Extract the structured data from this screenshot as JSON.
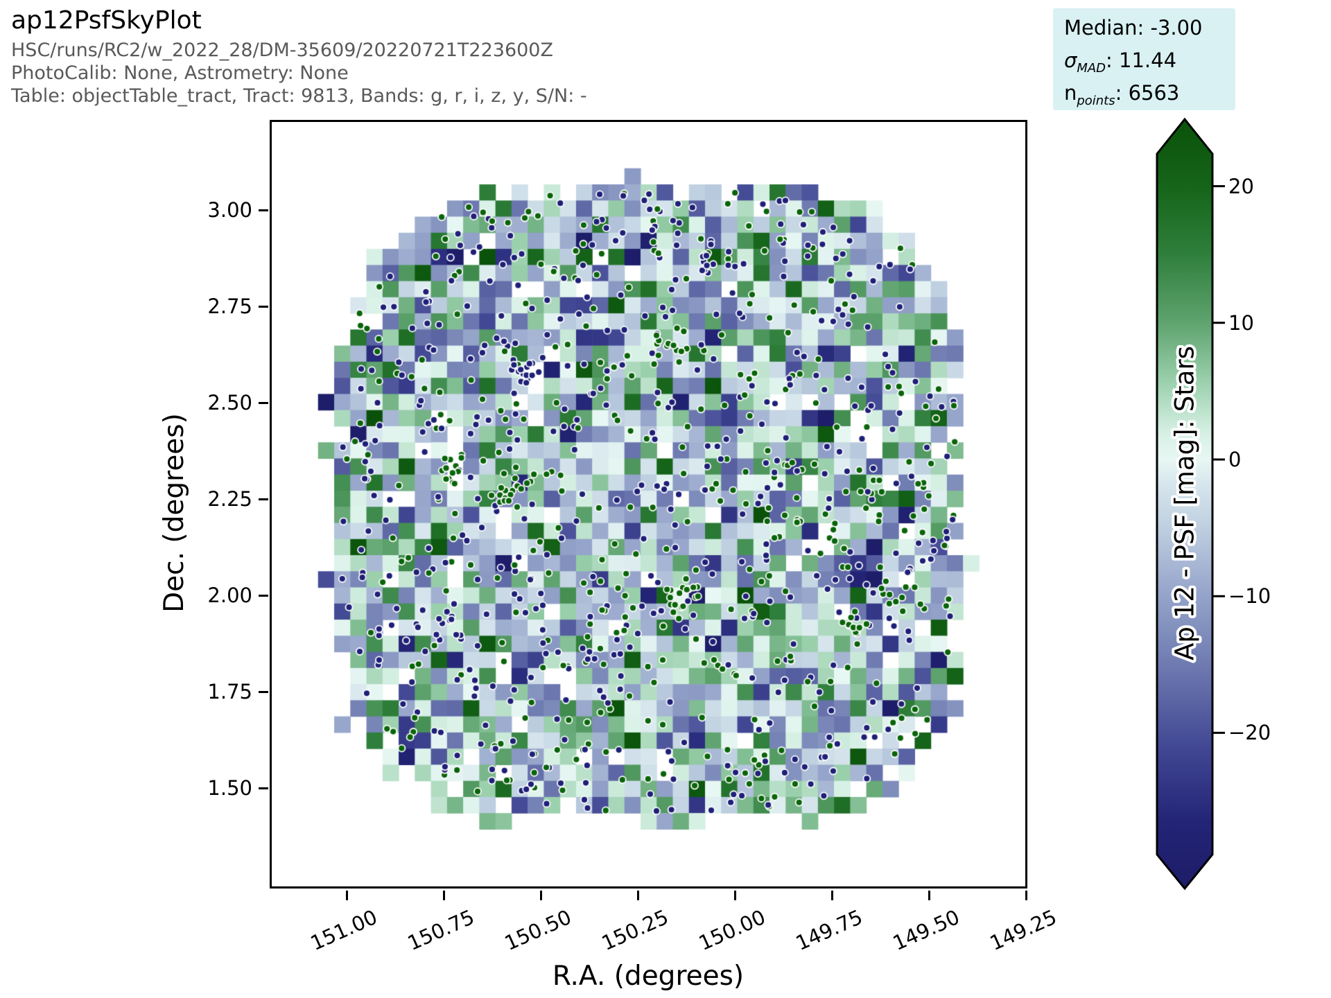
{
  "header": {
    "title": "ap12PsfSkyPlot",
    "lines": [
      "HSC/runs/RC2/w_2022_28/DM-35609/20220721T223600Z",
      "PhotoCalib: None, Astrometry: None",
      "Table: objectTable_tract, Tract: 9813, Bands: g, r, i, z, y, S/N: -"
    ]
  },
  "stats_box": {
    "background": "#d9f1f3",
    "lines": [
      {
        "prefix": "Median",
        "italic": false,
        "sub": "",
        "value": "-3.00"
      },
      {
        "prefix": "σ",
        "italic": true,
        "sub": "MAD",
        "value": "11.44"
      },
      {
        "prefix": "n",
        "italic": false,
        "sub": "points",
        "value": "6563"
      }
    ]
  },
  "plot": {
    "xlabel": "R.A. (degrees)",
    "ylabel": "Dec. (degrees)",
    "x_ticks": [
      {
        "value": 151.0,
        "label": "151.00"
      },
      {
        "value": 150.75,
        "label": "150.75"
      },
      {
        "value": 150.5,
        "label": "150.50"
      },
      {
        "value": 150.25,
        "label": "150.25"
      },
      {
        "value": 150.0,
        "label": "150.00"
      },
      {
        "value": 149.75,
        "label": "149.75"
      },
      {
        "value": 149.5,
        "label": "149.50"
      },
      {
        "value": 149.25,
        "label": "149.25"
      }
    ],
    "y_ticks": [
      {
        "value": 3.0,
        "label": "3.00"
      },
      {
        "value": 2.75,
        "label": "2.75"
      },
      {
        "value": 2.5,
        "label": "2.50"
      },
      {
        "value": 2.25,
        "label": "2.25"
      },
      {
        "value": 2.0,
        "label": "2.00"
      },
      {
        "value": 1.75,
        "label": "1.75"
      },
      {
        "value": 1.5,
        "label": "1.50"
      }
    ]
  },
  "colorbar": {
    "label": "Ap 12 - PSF [mag]: Stars",
    "ticks": [
      {
        "value": 20,
        "label": "20"
      },
      {
        "value": 10,
        "label": "10"
      },
      {
        "value": 0,
        "label": "0"
      },
      {
        "value": -10,
        "label": "−10"
      },
      {
        "value": -20,
        "label": "−20"
      }
    ]
  },
  "chart_data": {
    "type": "heatmap",
    "subtype": "sky-plot binned heatmap with outlier scatter points",
    "title": "ap12PsfSkyPlot",
    "xlabel": "R.A. (degrees)",
    "ylabel": "Dec. (degrees)",
    "x_axis": {
      "range": [
        151.2,
        149.25
      ],
      "reversed": true,
      "ticks": [
        151.0,
        150.75,
        150.5,
        150.25,
        150.0,
        149.75,
        149.5,
        149.25
      ]
    },
    "y_axis": {
      "range": [
        1.24,
        3.23
      ],
      "ticks": [
        3.0,
        2.75,
        2.5,
        2.25,
        2.0,
        1.75,
        1.5
      ]
    },
    "grid": false,
    "colorbar": {
      "label": "Ap 12 - PSF [mag]: Stars",
      "ticks": [
        20,
        10,
        0,
        -10,
        -20
      ],
      "extend": "both"
    },
    "statistics": {
      "median": -3.0,
      "sigma_mad": 11.44,
      "n_points": 6563
    },
    "footprint": {
      "shape": "superellipse",
      "center_ra": 150.22,
      "center_dec": 2.25,
      "half_width_ra_deg": 0.815,
      "half_width_dec_deg": 0.83,
      "exponent": 3.5
    },
    "bins": {
      "size_deg": 0.0417,
      "value_distribution": {
        "type": "gaussian",
        "mean": -3.0,
        "sigma": 11.44
      },
      "empty_fraction": 0.06
    },
    "scatter_points": {
      "visible_count": 920,
      "colors": {
        "negative_outlier": "#1e2078",
        "positive_outlier": "#0a650a"
      },
      "edge_color": "#ffffff",
      "fraction_negative": 0.57,
      "cluster_count": 9
    },
    "colormap_stops": [
      {
        "v": 25.5,
        "c": "#0a520a"
      },
      {
        "v": 20.0,
        "c": "#156419"
      },
      {
        "v": 15.0,
        "c": "#2f7f3c"
      },
      {
        "v": 10.0,
        "c": "#5fa36f"
      },
      {
        "v": 6.0,
        "c": "#96cda8"
      },
      {
        "v": 2.0,
        "c": "#d6f0e4"
      },
      {
        "v": 0.0,
        "c": "#e7f7f3"
      },
      {
        "v": -2.0,
        "c": "#d5e4ec"
      },
      {
        "v": -5.0,
        "c": "#becfe0"
      },
      {
        "v": -9.0,
        "c": "#9cabce"
      },
      {
        "v": -13.0,
        "c": "#7d8bba"
      },
      {
        "v": -17.0,
        "c": "#606aa7"
      },
      {
        "v": -21.0,
        "c": "#424894"
      },
      {
        "v": -26.5,
        "c": "#232476"
      },
      {
        "v": -31.0,
        "c": "#1d1d69"
      }
    ],
    "render_seed": 20220721
  }
}
